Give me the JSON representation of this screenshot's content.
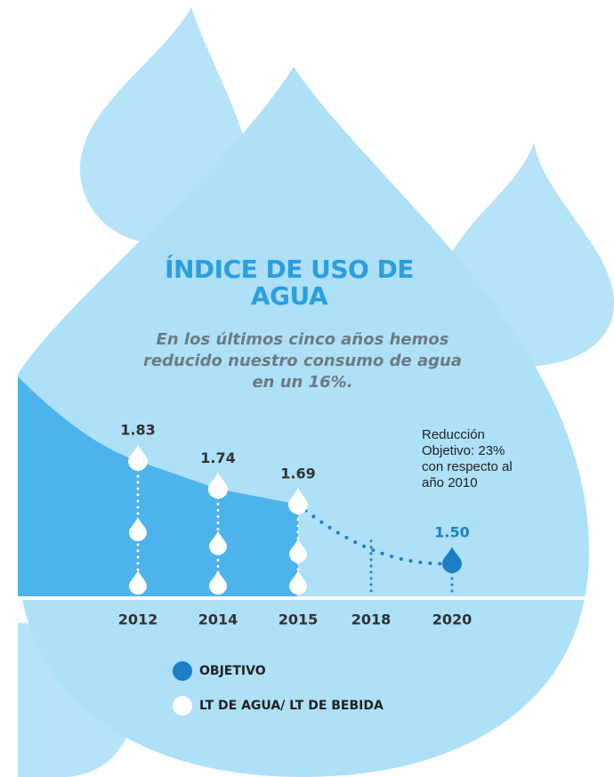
{
  "chart_data": {
    "type": "line",
    "title": "ÍNDICE DE USO DE AGUA",
    "subtitle": "En los últimos cinco años hemos reducido nuestro consumo de agua en un 16%.",
    "annotation": "Reducción Objetivo: 23% con respecto al año 2010",
    "categories": [
      "2012",
      "2014",
      "2015",
      "2018",
      "2020"
    ],
    "series": [
      {
        "name": "LT DE AGUA/ LT DE BEBIDA",
        "color": "#ffffff",
        "values": [
          1.83,
          1.74,
          1.69,
          null,
          null
        ]
      },
      {
        "name": "OBJETIVO",
        "color": "#1a7fc4",
        "values": [
          null,
          null,
          null,
          null,
          1.5
        ],
        "value_labels": [
          null,
          null,
          null,
          null,
          "1.50"
        ]
      }
    ]
  }
}
